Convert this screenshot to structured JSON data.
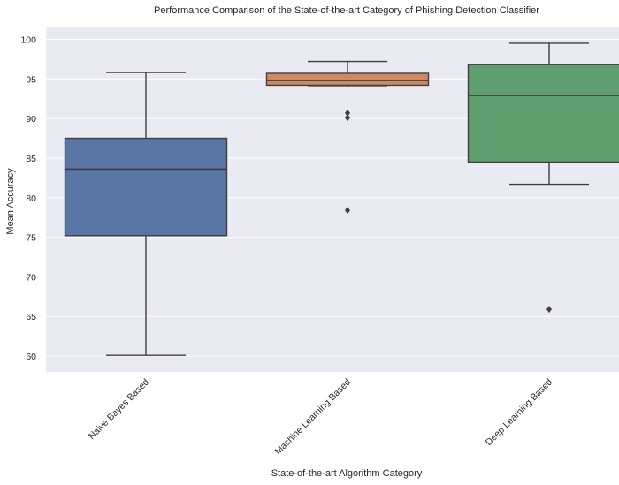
{
  "chart_data": {
    "type": "box",
    "title": "Performance Comparison of the State-of-the-art Category of Phishing Detection Classifier",
    "xlabel": "State-of-the-art Algorithm Category",
    "ylabel": "Mean Accuracy",
    "ylim": [
      58,
      101.5
    ],
    "yticks": [
      60,
      65,
      70,
      75,
      80,
      85,
      90,
      95,
      100
    ],
    "grid": true,
    "categories": [
      "Naive Bayes Based",
      "Machine Learning Based",
      "Deep Learning Based"
    ],
    "series": [
      {
        "category": "Naive Bayes Based",
        "whisker_low": 60.1,
        "q1": 75.2,
        "median": 83.6,
        "q3": 87.5,
        "whisker_high": 95.8,
        "outliers": [],
        "color": "#5975a4"
      },
      {
        "category": "Machine Learning Based",
        "whisker_low": 94.0,
        "q1": 94.2,
        "median": 94.8,
        "q3": 95.7,
        "whisker_high": 97.2,
        "outliers": [
          90.7,
          90.1,
          78.4
        ],
        "color": "#cc8963"
      },
      {
        "category": "Deep Learning Based",
        "whisker_low": 81.7,
        "q1": 84.5,
        "median": 92.9,
        "q3": 96.8,
        "whisker_high": 99.5,
        "outliers": [
          65.9
        ],
        "color": "#5f9e6e"
      }
    ]
  }
}
